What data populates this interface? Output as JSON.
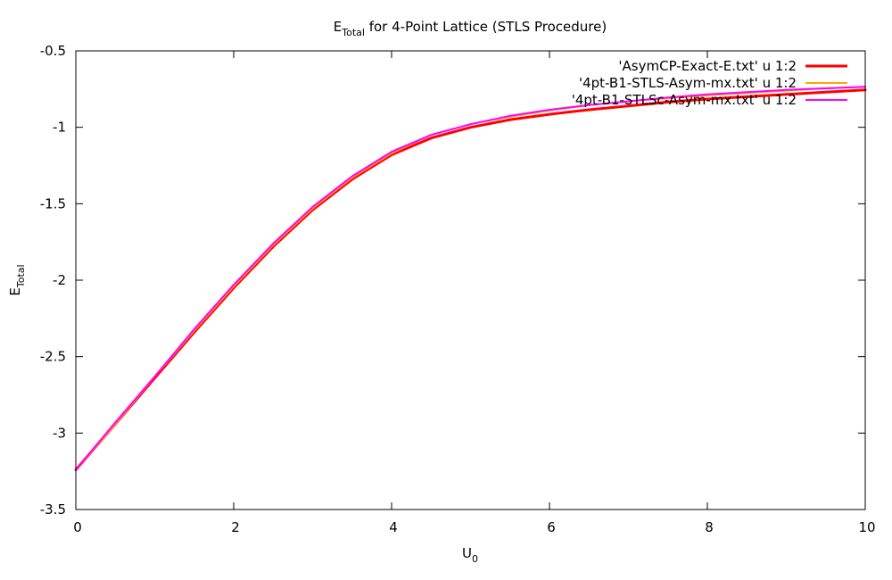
{
  "chart_data": {
    "type": "line",
    "title": {
      "main": "E",
      "sub": "Total",
      "rest": " for 4-Point Lattice (STLS Procedure)"
    },
    "xlabel": {
      "main": "U",
      "sub": "0"
    },
    "ylabel": {
      "main": "E",
      "sub": "Total"
    },
    "xlim": [
      0,
      10
    ],
    "ylim": [
      -3.5,
      -0.5
    ],
    "xticks": [
      0,
      2,
      4,
      6,
      8,
      10
    ],
    "xtick_labels": [
      "0",
      "2",
      "4",
      "6",
      "8",
      "10"
    ],
    "yticks": [
      -3.5,
      -3,
      -2.5,
      -2,
      -1.5,
      -1,
      -0.5
    ],
    "ytick_labels": [
      "-3.5",
      "-3",
      "-2.5",
      "-2",
      "-1.5",
      "-1",
      "-0.5"
    ],
    "grid": false,
    "legend_position": "top-right",
    "series": [
      {
        "name": "'AsymCP-Exact-E.txt' u 1:2",
        "color": "#ff0000",
        "width": 3,
        "x": [
          0,
          0.5,
          1,
          1.5,
          2,
          2.5,
          3,
          3.5,
          4,
          4.5,
          5,
          5.5,
          6,
          6.5,
          7,
          7.5,
          8,
          8.5,
          9,
          9.5,
          10
        ],
        "y": [
          -3.24,
          -2.94,
          -2.64,
          -2.34,
          -2.05,
          -1.78,
          -1.54,
          -1.34,
          -1.18,
          -1.07,
          -1.0,
          -0.95,
          -0.915,
          -0.885,
          -0.86,
          -0.835,
          -0.815,
          -0.8,
          -0.785,
          -0.77,
          -0.755
        ]
      },
      {
        "name": "'4pt-B1-STLS-Asym-mx.txt' u 1:2",
        "color": "#ffa500",
        "width": 2,
        "x": [
          0,
          0.5,
          1,
          1.5,
          2,
          2.5,
          3,
          3.5,
          4,
          4.5,
          5,
          5.5,
          6,
          6.5,
          7,
          7.5,
          8,
          8.5,
          9,
          9.5,
          10
        ],
        "y": [
          -3.24,
          -2.94,
          -2.63,
          -2.33,
          -2.04,
          -1.77,
          -1.53,
          -1.33,
          -1.17,
          -1.05,
          -0.98,
          -0.93,
          -0.89,
          -0.855,
          -0.83,
          -0.81,
          -0.79,
          -0.775,
          -0.76,
          -0.745,
          -0.735
        ]
      },
      {
        "name": "'4pt-B1-STLSc-Asym-mx.txt' u 1:2",
        "color": "#ff00ff",
        "width": 2,
        "x": [
          0,
          0.5,
          1,
          1.5,
          2,
          2.5,
          3,
          3.5,
          4,
          4.5,
          5,
          5.5,
          6,
          6.5,
          7,
          7.5,
          8,
          8.5,
          9,
          9.5,
          10
        ],
        "y": [
          -3.24,
          -2.93,
          -2.63,
          -2.32,
          -2.03,
          -1.76,
          -1.52,
          -1.32,
          -1.16,
          -1.05,
          -0.98,
          -0.925,
          -0.885,
          -0.855,
          -0.83,
          -0.805,
          -0.785,
          -0.77,
          -0.755,
          -0.745,
          -0.735
        ]
      }
    ]
  }
}
